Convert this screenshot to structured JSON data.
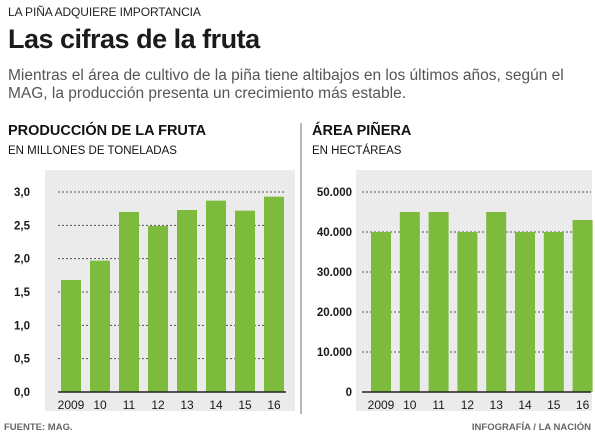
{
  "header": {
    "kicker": "LA PIÑA ADQUIERE IMPORTANCIA",
    "title": "Las cifras de la fruta",
    "subtitle": "Mientras el área de cultivo de la piña tiene altibajos en los últimos años, según el MAG, la producción presenta un crecimiento más estable."
  },
  "footer": {
    "source": "FUENTE: MAG.",
    "credit": "INFOGRAFÍA  / LA NACIÓN"
  },
  "colors": {
    "bar": "#7dbb3c",
    "plot_bg": "#ebebeb",
    "axis": "#222222",
    "gridline": "#555555"
  },
  "chart_data": [
    {
      "type": "bar",
      "title": "PRODUCCIÓN DE LA FRUTA",
      "ylabel": "EN MILLONES DE TONELADAS",
      "categories": [
        "2009",
        "10",
        "11",
        "12",
        "13",
        "14",
        "15",
        "16"
      ],
      "values": [
        1.68,
        1.97,
        2.7,
        2.49,
        2.73,
        2.87,
        2.72,
        2.93
      ],
      "ylim": [
        0,
        3.0
      ],
      "yticks": [
        "0,0",
        "0,5",
        "1,0",
        "1,5",
        "2,0",
        "2,5",
        "3,0"
      ],
      "grid": true
    },
    {
      "type": "bar",
      "title": "ÁREA PIÑERA",
      "ylabel": "EN HECTÁREAS",
      "categories": [
        "2009",
        "10",
        "11",
        "12",
        "13",
        "14",
        "15",
        "16"
      ],
      "values": [
        40000,
        45000,
        45000,
        40000,
        45000,
        40000,
        40000,
        43000
      ],
      "ylim": [
        0,
        50000
      ],
      "yticks": [
        "0",
        "10.000",
        "20.000",
        "30.000",
        "40.000",
        "50.000"
      ],
      "grid": true
    }
  ]
}
